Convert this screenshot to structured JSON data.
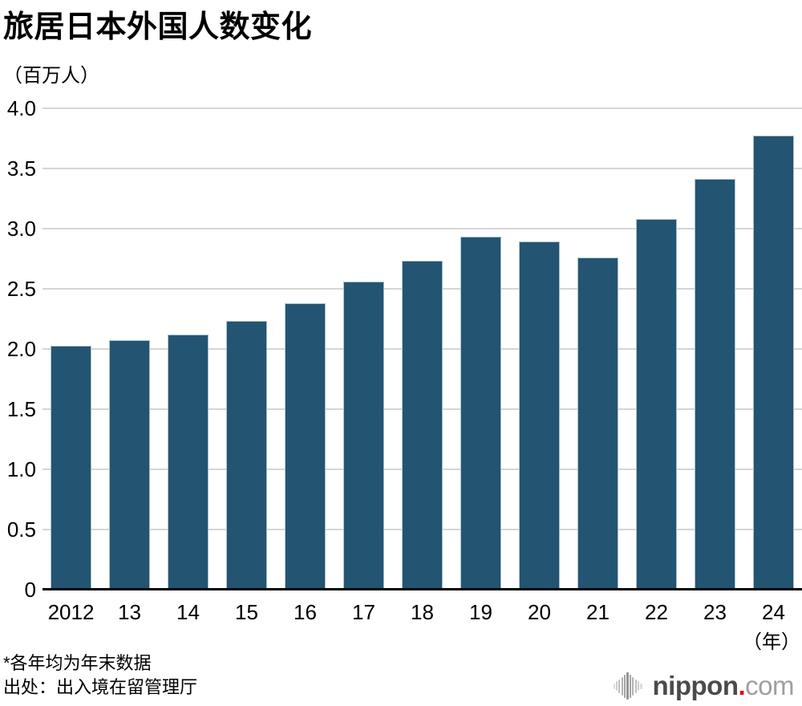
{
  "title": "旅居日本外国人数变化",
  "unit_label": "（百万人）",
  "x_unit_label": "（年）",
  "footnotes": [
    "*各年均为年末数据",
    "出处：出入境在留管理厅"
  ],
  "logo": {
    "icon": "audio-wave-icon",
    "name": "nippon",
    "dot": ".",
    "tld": "com"
  },
  "colors": {
    "bar": "#235472",
    "bar_border": "#a9c2d0",
    "gridline": "#d6d6d6",
    "axis": "#000000",
    "logo_dark": "#4b4b4b",
    "logo_red": "#e60012",
    "logo_gray": "#9f9f9f"
  },
  "chart_data": {
    "type": "bar",
    "title": "旅居日本外国人数变化",
    "ylabel": "（百万人）",
    "xlabel": "（年）",
    "categories": [
      "2012",
      "13",
      "14",
      "15",
      "16",
      "17",
      "18",
      "19",
      "20",
      "21",
      "22",
      "23",
      "24"
    ],
    "values": [
      2.03,
      2.07,
      2.12,
      2.23,
      2.38,
      2.56,
      2.73,
      2.93,
      2.89,
      2.76,
      3.08,
      3.41,
      3.77
    ],
    "ylim": [
      0,
      4.0
    ],
    "yticks": [
      0,
      0.5,
      1.0,
      1.5,
      2.0,
      2.5,
      3.0,
      3.5,
      4.0
    ],
    "grid": true,
    "legend_position": "none",
    "bar_color": "#235472",
    "source": "出入境在留管理厅",
    "note": "各年均为年末数据"
  }
}
